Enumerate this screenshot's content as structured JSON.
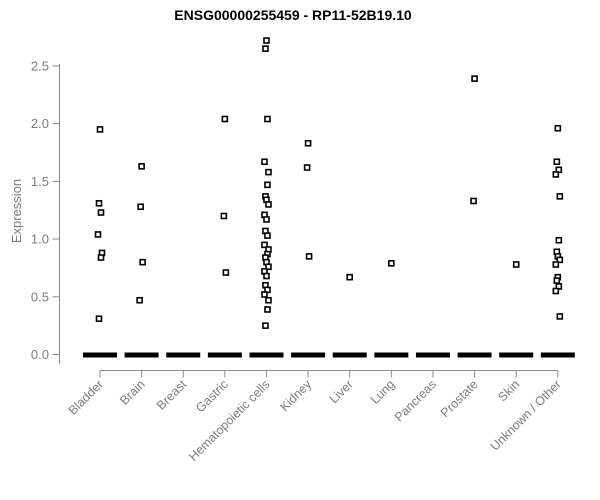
{
  "chart_data": {
    "type": "scatter",
    "title": "ENSG00000255459 - RP11-52B19.10",
    "xlabel": "",
    "ylabel": "Expression",
    "ylim": [
      0,
      2.75
    ],
    "y_ticks": [
      "0.0",
      "0.5",
      "1.0",
      "1.5",
      "2.0",
      "2.5"
    ],
    "grid": "off",
    "legend": "none",
    "marker": "open-square",
    "zero_overplot_note": "each category shows a thick black dash of overplotted points at expression 0",
    "categories": [
      "Bladder",
      "Brain",
      "Breast",
      "Gastric",
      "Hematopoietic cells",
      "Kidney",
      "Liver",
      "Lung",
      "Pancreas",
      "Prostate",
      "Skin",
      "Unknown / Other"
    ],
    "series": [
      {
        "category": "Bladder",
        "zero_dash": true,
        "values": [
          1.95,
          1.31,
          1.23,
          1.04,
          0.88,
          0.84,
          0.31
        ]
      },
      {
        "category": "Brain",
        "zero_dash": true,
        "values": [
          1.63,
          1.28,
          0.8,
          0.47
        ]
      },
      {
        "category": "Breast",
        "zero_dash": true,
        "values": []
      },
      {
        "category": "Gastric",
        "zero_dash": true,
        "values": [
          2.04,
          1.2,
          0.71
        ]
      },
      {
        "category": "Hematopoietic cells",
        "zero_dash": true,
        "values": [
          2.72,
          2.65,
          2.04,
          1.67,
          1.58,
          1.47,
          1.37,
          1.34,
          1.3,
          1.21,
          1.17,
          1.07,
          1.03,
          0.95,
          0.91,
          0.87,
          0.84,
          0.8,
          0.76,
          0.72,
          0.68,
          0.6,
          0.56,
          0.52,
          0.47,
          0.39,
          0.25
        ]
      },
      {
        "category": "Kidney",
        "zero_dash": true,
        "values": [
          1.83,
          1.62,
          0.85
        ]
      },
      {
        "category": "Liver",
        "zero_dash": true,
        "values": [
          0.67
        ]
      },
      {
        "category": "Lung",
        "zero_dash": true,
        "values": [
          0.79
        ]
      },
      {
        "category": "Pancreas",
        "zero_dash": true,
        "values": []
      },
      {
        "category": "Prostate",
        "zero_dash": true,
        "values": [
          2.39,
          1.33
        ]
      },
      {
        "category": "Skin",
        "zero_dash": true,
        "values": [
          0.78
        ]
      },
      {
        "category": "Unknown / Other",
        "zero_dash": true,
        "values": [
          1.96,
          1.67,
          1.6,
          1.56,
          1.37,
          0.99,
          0.89,
          0.85,
          0.82,
          0.78,
          0.67,
          0.64,
          0.59,
          0.55,
          0.33
        ]
      }
    ],
    "colors": {
      "point_stroke": "#000000",
      "point_fill": "#ffffff",
      "zero_dash": "#000000",
      "axis_line": "#8b8b8b",
      "text_gray": "#7d7d7d",
      "title_color": "#000000",
      "background": "#ffffff"
    }
  }
}
